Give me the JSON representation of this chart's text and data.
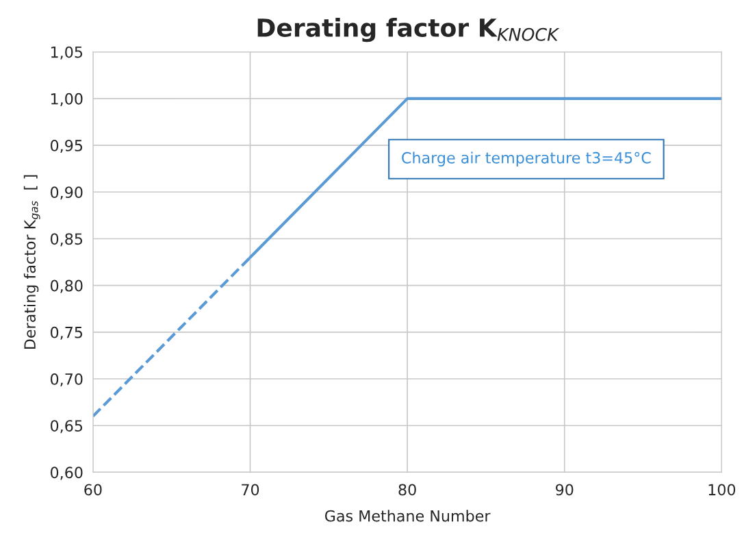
{
  "chart_data": {
    "type": "line",
    "title": "Derating factor K$_{KNOCK}$",
    "xlabel": "Gas Methane Number",
    "ylabel": "Derating factor K$_{gas}$  [ ]",
    "series": [
      {
        "color": "#5b9bd5",
        "x": [
          60,
          70
        ],
        "values": [
          0.66,
          0.83
        ],
        "line_style": "dashed"
      },
      {
        "color": "#5b9bd5",
        "x": [
          70,
          80,
          100
        ],
        "values": [
          0.83,
          1.0,
          1.0
        ],
        "line_style": "solid"
      }
    ],
    "annotations": [
      "Charge air temperature t3=45°C"
    ],
    "xlim": [
      60,
      100
    ],
    "xticks": [
      60,
      70,
      80,
      90,
      100
    ],
    "ylim": [
      0.6,
      1.05
    ],
    "yticks": [
      {
        "value": 0.6,
        "label": "0,60"
      },
      {
        "value": 0.65,
        "label": "0,65"
      },
      {
        "value": 0.7,
        "label": "0,70"
      },
      {
        "value": 0.75,
        "label": "0,75"
      },
      {
        "value": 0.8,
        "label": "0,80"
      },
      {
        "value": 0.85,
        "label": "0,85"
      },
      {
        "value": 0.9,
        "label": "0,90"
      },
      {
        "value": 0.95,
        "label": "0,95"
      },
      {
        "value": 1.0,
        "label": "1,00"
      },
      {
        "value": 1.05,
        "label": "1,05"
      }
    ],
    "grid": true,
    "marker": "none"
  }
}
